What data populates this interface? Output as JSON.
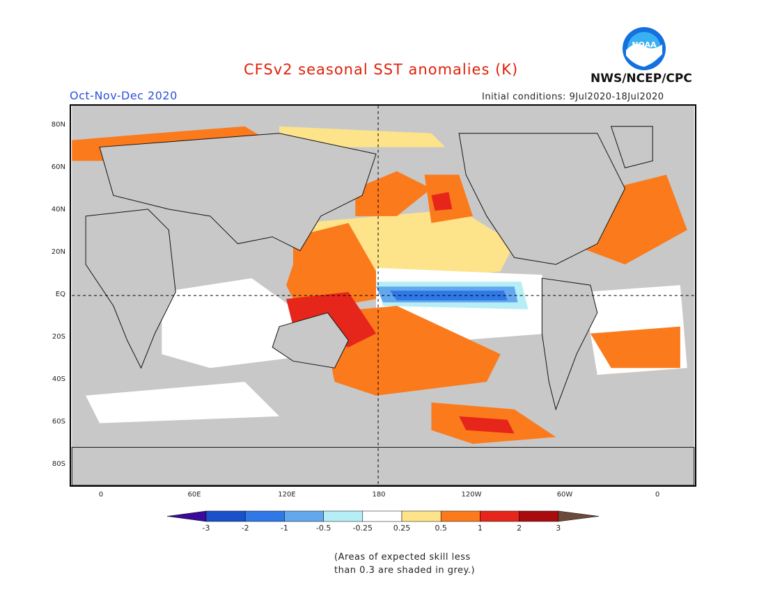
{
  "header": {
    "title": "CFSv2 seasonal SST anomalies (K)",
    "period": "Oct-Nov-Dec 2020",
    "initial_conditions": "Initial conditions: 9Jul2020-18Jul2020",
    "org": "NWS/NCEP/CPC",
    "logo_text": "NOAA"
  },
  "map": {
    "lat_labels": [
      "80N",
      "60N",
      "40N",
      "20N",
      "EQ",
      "20S",
      "40S",
      "60S",
      "80S"
    ],
    "lon_labels": [
      "0",
      "60E",
      "120E",
      "180",
      "120W",
      "60W",
      "0"
    ],
    "grey_meaning": "skill < 0.3"
  },
  "colorbar": {
    "tick_labels": [
      "-3",
      "-2",
      "-1",
      "-0.5",
      "-0.25",
      "0.25",
      "0.5",
      "1",
      "2",
      "3"
    ],
    "colors": [
      "#3a0a9c",
      "#1a50c8",
      "#2f78e6",
      "#63a8ee",
      "#b6eef6",
      "#ffffff",
      "#fde38a",
      "#fb7a1c",
      "#e6261a",
      "#a80c0c",
      "#6b4a3a"
    ],
    "under_color": "#3a0a9c",
    "over_color": "#6b4a3a"
  },
  "footnote": {
    "line1": "(Areas of expected skill less",
    "line2": "than 0.3 are shaded in grey.)"
  }
}
